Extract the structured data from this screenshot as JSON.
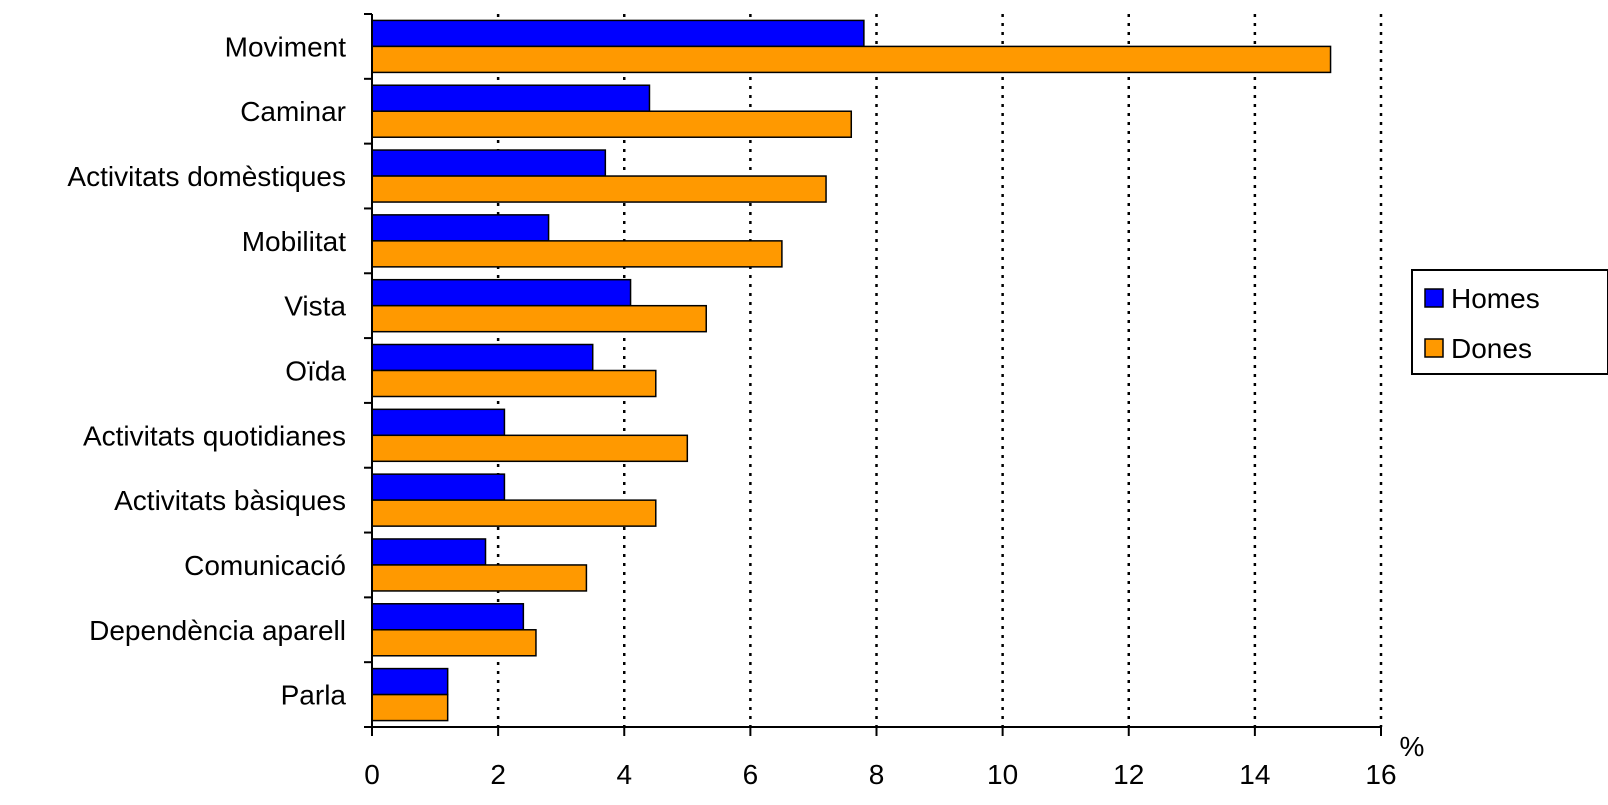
{
  "chart_data": {
    "type": "bar",
    "orientation": "horizontal",
    "categories": [
      "Moviment",
      "Caminar",
      "Activitats domèstiques",
      "Mobilitat",
      "Vista",
      "Oïda",
      "Activitats quotidianes",
      "Activitats bàsiques",
      "Comunicació",
      "Dependència aparell",
      "Parla"
    ],
    "series": [
      {
        "name": "Homes",
        "color": "#0000ff",
        "values": [
          7.8,
          4.4,
          3.7,
          2.8,
          4.1,
          3.5,
          2.1,
          2.1,
          1.8,
          2.4,
          1.2
        ]
      },
      {
        "name": "Dones",
        "color": "#ff9900",
        "values": [
          15.2,
          7.6,
          7.2,
          6.5,
          5.3,
          4.5,
          5.0,
          4.5,
          3.4,
          2.6,
          1.2
        ]
      }
    ],
    "x_ticks": [
      0,
      2,
      4,
      6,
      8,
      10,
      12,
      14,
      16
    ],
    "x_unit": "%",
    "xlim": [
      0,
      16
    ],
    "grid": "vertical dotted",
    "legend_position": "right"
  }
}
